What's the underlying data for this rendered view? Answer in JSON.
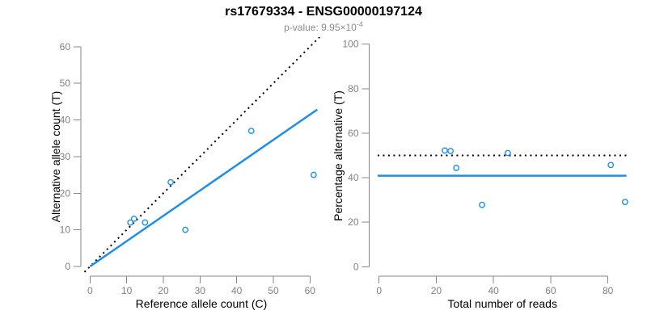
{
  "chart_data": [
    {
      "type": "scatter",
      "title": "rs17679334 - ENSG00000197124",
      "subtitle_prefix": "p-value: 9.95×10",
      "subtitle_exponent": "-4",
      "xlabel": "Reference allele count (C)",
      "ylabel": "Alternative allele count (T)",
      "xlim": [
        0,
        60
      ],
      "ylim": [
        0,
        60
      ],
      "xticks": [
        0,
        10,
        20,
        30,
        40,
        50,
        60
      ],
      "yticks": [
        0,
        10,
        20,
        30,
        40,
        50,
        60
      ],
      "grid": false,
      "legend": "none",
      "marker": "open-circle",
      "point_color": "#1e8ee8",
      "points": [
        [
          11,
          12
        ],
        [
          12,
          13
        ],
        [
          15,
          12
        ],
        [
          22,
          23
        ],
        [
          26,
          10
        ],
        [
          44,
          37
        ],
        [
          61,
          25
        ]
      ],
      "lines": [
        {
          "name": "identity",
          "style": "dotted",
          "color": "#000000",
          "slope": 1,
          "intercept": 0,
          "x_range": [
            -1.5,
            63
          ]
        },
        {
          "name": "fit",
          "style": "solid",
          "color": "#1e8ee8",
          "slope": 0.691,
          "intercept": 0,
          "x_range": [
            0,
            62
          ]
        }
      ]
    },
    {
      "type": "scatter",
      "xlabel": "Total number of reads",
      "ylabel": "Percentage alternative (T)",
      "xlim": [
        0,
        86
      ],
      "ylim": [
        0,
        100
      ],
      "xticks": [
        0,
        20,
        40,
        60,
        80
      ],
      "yticks": [
        0,
        20,
        40,
        60,
        80,
        100
      ],
      "grid": false,
      "legend": "none",
      "marker": "open-circle",
      "point_color": "#1e8ee8",
      "points": [
        [
          23,
          52.2
        ],
        [
          25,
          52.0
        ],
        [
          27,
          44.4
        ],
        [
          36,
          27.8
        ],
        [
          45,
          51.1
        ],
        [
          81,
          45.7
        ],
        [
          86,
          29.1
        ]
      ],
      "lines": [
        {
          "name": "expected-50pct",
          "style": "dotted",
          "color": "#000000",
          "slope": 0,
          "intercept": 50,
          "x_range": [
            -0.5,
            86.5
          ]
        },
        {
          "name": "observed-mean",
          "style": "solid",
          "color": "#1e8ee8",
          "slope": 0,
          "intercept": 40.9,
          "x_range": [
            -0.5,
            86.5
          ]
        }
      ]
    }
  ],
  "colors": {
    "accent_blue": "#1e8ee8",
    "dotted_black": "#000000",
    "tick_label_gray": "#808080",
    "axis_gray": "#878787",
    "subtitle_gray": "#8c8c8c",
    "title_black": "#000000",
    "background": "#ffffff"
  }
}
